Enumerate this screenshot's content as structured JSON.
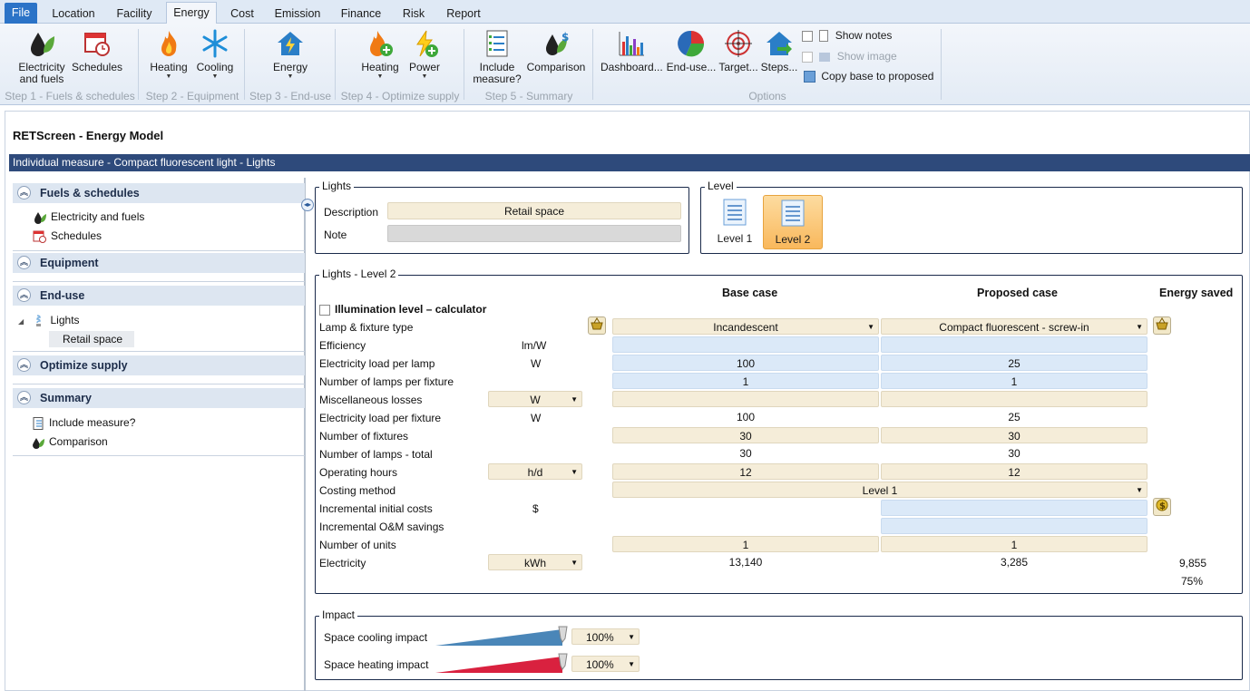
{
  "tabs": [
    "File",
    "Location",
    "Facility",
    "Energy",
    "Cost",
    "Emission",
    "Finance",
    "Risk",
    "Report"
  ],
  "ribbon": {
    "electricity_and_fuels": "Electricity\nand fuels",
    "electricity_l1": "Electricity",
    "electricity_l2": "and fuels",
    "schedules": "Schedules",
    "step1": "Step 1 - Fuels & schedules",
    "heating": "Heating",
    "cooling": "Cooling",
    "step2": "Step 2 - Equipment",
    "energy": "Energy",
    "step3": "Step 3 - End-use",
    "opt_heating": "Heating",
    "opt_power": "Power",
    "step4": "Step 4 - Optimize supply",
    "include_l1": "Include",
    "include_l2": "measure?",
    "comparison": "Comparison",
    "step5": "Step 5 - Summary",
    "dashboard": "Dashboard...",
    "enduse": "End-use...",
    "target": "Target...",
    "steps": "Steps...",
    "show_notes": "Show notes",
    "show_image": "Show image",
    "copy_base": "Copy base to proposed",
    "options": "Options"
  },
  "app_title": "RETScreen - Energy Model",
  "measure_title": "Individual measure - Compact fluorescent light - Lights",
  "nav": {
    "fuels_schedules": "Fuels & schedules",
    "electricity_fuels": "Electricity and fuels",
    "schedules": "Schedules",
    "equipment": "Equipment",
    "enduse": "End-use",
    "lights": "Lights",
    "retail_space": "Retail space",
    "optimize_supply": "Optimize supply",
    "summary": "Summary",
    "include_measure": "Include measure?",
    "comparison": "Comparison"
  },
  "lights": {
    "legend": "Lights",
    "description_label": "Description",
    "description_value": "Retail space",
    "note_label": "Note"
  },
  "level": {
    "legend": "Level",
    "level1": "Level 1",
    "level2": "Level 2",
    "selected": "Level 2"
  },
  "lights_level2": {
    "legend": "Lights - Level 2",
    "base_case": "Base case",
    "proposed_case": "Proposed case",
    "energy_saved": "Energy saved",
    "illumination_calc": "Illumination level – calculator",
    "rows": {
      "lamp_fixture_type": "Lamp & fixture type",
      "efficiency": "Efficiency",
      "efficiency_unit": "lm/W",
      "elec_load_lamp": "Electricity load per lamp",
      "elec_load_lamp_unit": "W",
      "lamps_per_fixture": "Number of lamps per fixture",
      "misc_losses": "Miscellaneous losses",
      "misc_losses_unit": "W",
      "elec_load_fixture": "Electricity load per fixture",
      "elec_load_fixture_unit": "W",
      "num_fixtures": "Number of fixtures",
      "num_lamps_total": "Number of lamps - total",
      "operating_hours": "Operating hours",
      "operating_hours_unit": "h/d",
      "costing_method": "Costing method",
      "incr_initial_costs": "Incremental initial costs",
      "incr_initial_unit": "$",
      "incr_om_savings": "Incremental O&M savings",
      "num_units": "Number of units",
      "electricity": "Electricity",
      "electricity_unit": "kWh"
    },
    "base": {
      "lamp_type": "Incandescent",
      "elec_load_lamp": "100",
      "lamps_per_fixture": "1",
      "elec_load_fixture": "100",
      "num_fixtures": "30",
      "num_lamps_total": "30",
      "operating_hours": "12",
      "num_units": "1",
      "electricity": "13,140"
    },
    "proposed": {
      "lamp_type": "Compact fluorescent - screw-in",
      "elec_load_lamp": "25",
      "lamps_per_fixture": "1",
      "elec_load_fixture": "25",
      "num_fixtures": "30",
      "num_lamps_total": "30",
      "operating_hours": "12",
      "num_units": "1",
      "electricity": "3,285"
    },
    "costing_method_value": "Level 1",
    "saved": {
      "electricity": "9,855",
      "percent": "75%"
    }
  },
  "impact": {
    "legend": "Impact",
    "cooling_label": "Space cooling impact",
    "cooling_value": "100%",
    "heating_label": "Space heating impact",
    "heating_value": "100%",
    "colors": {
      "cooling": "#4a86b8",
      "heating": "#d9213f"
    }
  }
}
